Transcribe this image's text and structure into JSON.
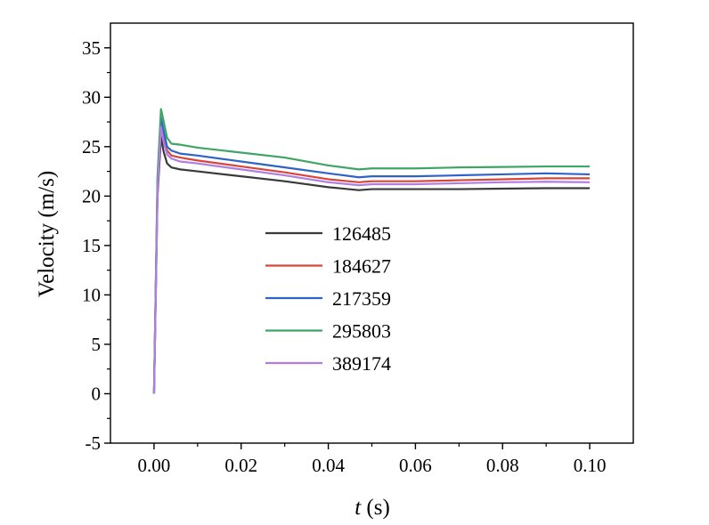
{
  "chart_data": {
    "type": "line",
    "title": "",
    "xlabel_italic": "t",
    "xlabel_unit": " (s)",
    "ylabel": "Velocity (m/s)",
    "xlim": [
      -0.01,
      0.11
    ],
    "ylim": [
      -5,
      37.5
    ],
    "xticks": [
      0.0,
      0.02,
      0.04,
      0.06,
      0.08,
      0.1
    ],
    "xtick_labels": [
      "0.00",
      "0.02",
      "0.04",
      "0.06",
      "0.08",
      "0.10"
    ],
    "yticks": [
      -5,
      0,
      5,
      10,
      15,
      20,
      25,
      30,
      35
    ],
    "ytick_labels": [
      "-5",
      "0",
      "5",
      "10",
      "15",
      "20",
      "25",
      "30",
      "35"
    ],
    "grid": false,
    "legend_position": "center-left",
    "series": [
      {
        "name": "126485",
        "color": "#3a3a3a",
        "x": [
          0.0,
          0.0008,
          0.0016,
          0.0022,
          0.003,
          0.004,
          0.006,
          0.01,
          0.02,
          0.03,
          0.04,
          0.047,
          0.05,
          0.06,
          0.07,
          0.08,
          0.09,
          0.1
        ],
        "y": [
          0.0,
          20.0,
          26.0,
          24.5,
          23.3,
          22.9,
          22.7,
          22.5,
          22.0,
          21.5,
          20.9,
          20.6,
          20.7,
          20.7,
          20.7,
          20.75,
          20.8,
          20.8
        ]
      },
      {
        "name": "184627",
        "color": "#d8463a",
        "x": [
          0.0,
          0.0008,
          0.0016,
          0.0022,
          0.003,
          0.004,
          0.006,
          0.01,
          0.02,
          0.03,
          0.04,
          0.047,
          0.05,
          0.06,
          0.07,
          0.08,
          0.09,
          0.1
        ],
        "y": [
          0.0,
          21.0,
          27.3,
          26.0,
          24.6,
          24.1,
          23.9,
          23.6,
          23.0,
          22.4,
          21.7,
          21.4,
          21.5,
          21.5,
          21.6,
          21.7,
          21.8,
          21.8
        ]
      },
      {
        "name": "217359",
        "color": "#2f63c8",
        "x": [
          0.0,
          0.0008,
          0.0016,
          0.0022,
          0.003,
          0.004,
          0.006,
          0.01,
          0.02,
          0.03,
          0.04,
          0.047,
          0.05,
          0.06,
          0.07,
          0.08,
          0.09,
          0.1
        ],
        "y": [
          0.0,
          21.5,
          27.9,
          26.6,
          25.0,
          24.6,
          24.3,
          24.1,
          23.5,
          22.9,
          22.3,
          21.9,
          22.0,
          22.0,
          22.1,
          22.2,
          22.3,
          22.2
        ]
      },
      {
        "name": "295803",
        "color": "#3ea566",
        "x": [
          0.0,
          0.0008,
          0.0016,
          0.0022,
          0.003,
          0.004,
          0.006,
          0.01,
          0.02,
          0.03,
          0.04,
          0.047,
          0.05,
          0.06,
          0.07,
          0.08,
          0.09,
          0.1
        ],
        "y": [
          0.0,
          22.0,
          28.8,
          27.6,
          25.9,
          25.3,
          25.2,
          24.9,
          24.4,
          23.9,
          23.1,
          22.7,
          22.8,
          22.8,
          22.9,
          22.95,
          23.0,
          23.0
        ]
      },
      {
        "name": "389174",
        "color": "#b07ee0",
        "x": [
          0.0,
          0.0008,
          0.0016,
          0.0022,
          0.003,
          0.004,
          0.006,
          0.01,
          0.02,
          0.03,
          0.04,
          0.047,
          0.05,
          0.06,
          0.07,
          0.08,
          0.09,
          0.1
        ],
        "y": [
          0.0,
          20.5,
          27.0,
          25.5,
          24.2,
          23.8,
          23.5,
          23.3,
          22.7,
          22.1,
          21.4,
          21.1,
          21.2,
          21.2,
          21.3,
          21.4,
          21.45,
          21.4
        ]
      }
    ]
  }
}
